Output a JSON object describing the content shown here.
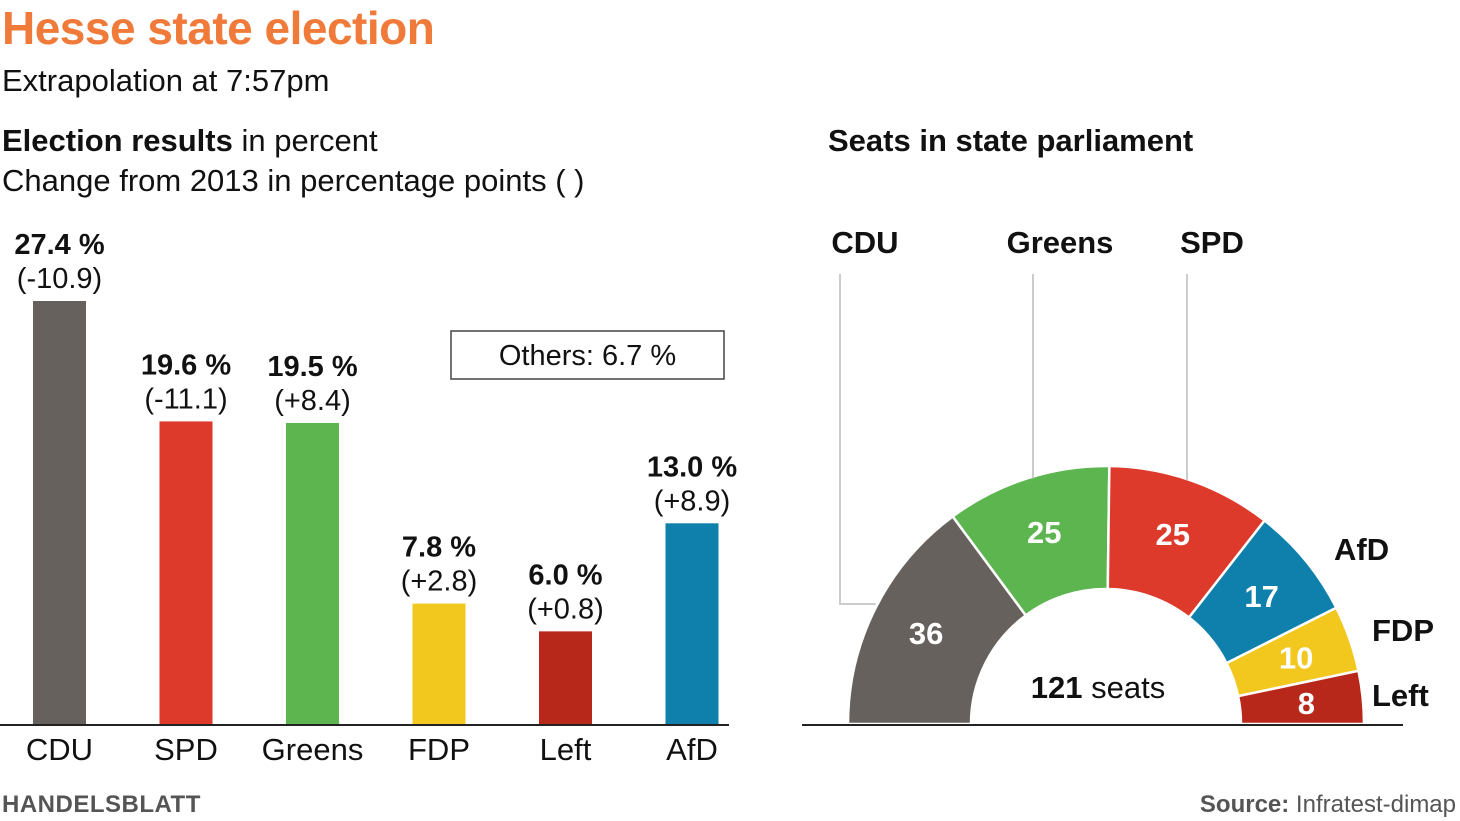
{
  "title": "Hesse state election",
  "subtitle": "Extrapolation at 7:57pm",
  "results_heading": {
    "bold": "Election results",
    "rest": " in percent"
  },
  "change_note": "Change from 2013 in percentage points ( )",
  "seats_heading": "Seats in state parliament",
  "footer": {
    "brand": "HANDELSBLATT",
    "source_label": "Source:",
    "source_name": " Infratest-dimap"
  },
  "chart_data": [
    {
      "type": "bar",
      "title": "Election results in percent",
      "categories": [
        "CDU",
        "SPD",
        "Greens",
        "FDP",
        "Left",
        "AfD"
      ],
      "values": [
        27.4,
        19.6,
        19.5,
        7.8,
        6.0,
        13.0
      ],
      "value_labels": [
        "27.4 %",
        "19.6 %",
        "19.5 %",
        "7.8 %",
        "6.0 %",
        "13.0 %"
      ],
      "changes": [
        "(-10.9)",
        "(-11.1)",
        "(+8.4)",
        "(+2.8)",
        "(+0.8)",
        "(+8.9)"
      ],
      "colors": [
        "#67615d",
        "#dd3a2c",
        "#5db550",
        "#f2c81f",
        "#b8281a",
        "#0e80ab"
      ],
      "ylim": [
        0,
        27.4
      ],
      "annotation": "Others: 6.7 %"
    },
    {
      "type": "pie",
      "title": "Seats in state parliament",
      "categories": [
        "CDU",
        "Greens",
        "SPD",
        "AfD",
        "FDP",
        "Left"
      ],
      "values": [
        36,
        25,
        25,
        17,
        10,
        8
      ],
      "colors": [
        "#67615d",
        "#5db550",
        "#dd3a2c",
        "#0e80ab",
        "#f2c81f",
        "#b8281a"
      ],
      "total_value": "121",
      "total_unit": " seats"
    }
  ]
}
